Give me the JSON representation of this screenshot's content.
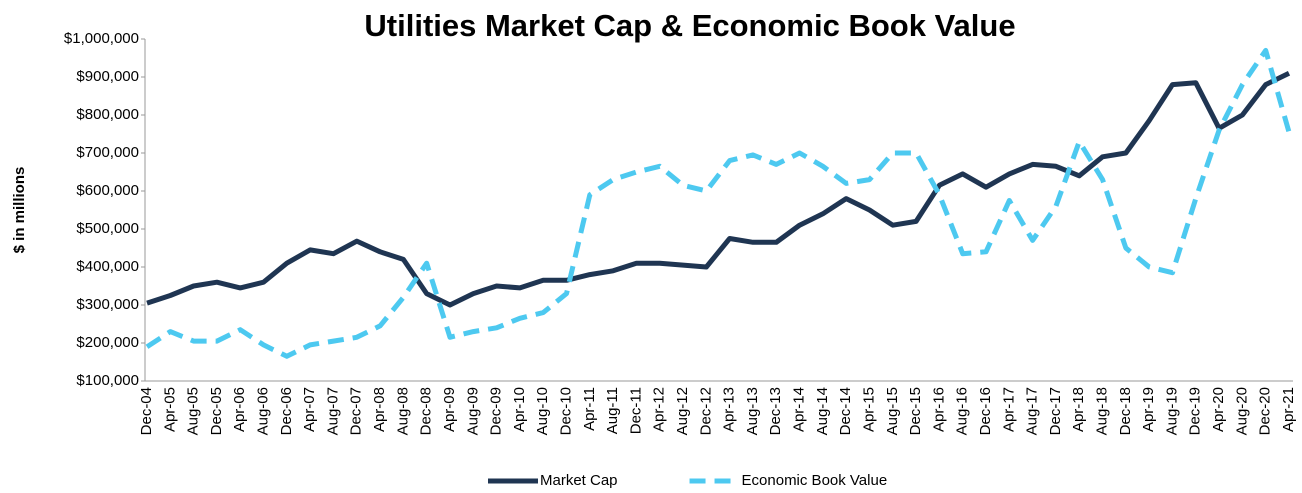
{
  "chart_data": {
    "type": "line",
    "title": "Utilities Market Cap & Economic Book Value",
    "y_label": "$ in millions",
    "categories": [
      "Dec-04",
      "Apr-05",
      "Aug-05",
      "Dec-05",
      "Apr-06",
      "Aug-06",
      "Dec-06",
      "Apr-07",
      "Aug-07",
      "Dec-07",
      "Apr-08",
      "Aug-08",
      "Dec-08",
      "Apr-09",
      "Aug-09",
      "Dec-09",
      "Apr-10",
      "Aug-10",
      "Dec-10",
      "Apr-11",
      "Aug-11",
      "Dec-11",
      "Apr-12",
      "Aug-12",
      "Dec-12",
      "Apr-13",
      "Aug-13",
      "Dec-13",
      "Apr-14",
      "Aug-14",
      "Dec-14",
      "Apr-15",
      "Aug-15",
      "Dec-15",
      "Apr-16",
      "Aug-16",
      "Dec-16",
      "Apr-17",
      "Aug-17",
      "Dec-17",
      "Apr-18",
      "Aug-18",
      "Dec-18",
      "Apr-19",
      "Aug-19",
      "Dec-19",
      "Apr-20",
      "Aug-20",
      "Dec-20",
      "Apr-21"
    ],
    "series": [
      {
        "name": "Market Cap",
        "color": "#1f3552",
        "dash": false,
        "values": [
          305000,
          325000,
          350000,
          360000,
          345000,
          360000,
          410000,
          445000,
          435000,
          468000,
          440000,
          420000,
          330000,
          300000,
          330000,
          350000,
          345000,
          365000,
          365000,
          380000,
          390000,
          410000,
          410000,
          405000,
          400000,
          475000,
          465000,
          465000,
          510000,
          540000,
          580000,
          550000,
          510000,
          520000,
          615000,
          645000,
          610000,
          645000,
          670000,
          665000,
          640000,
          690000,
          700000,
          785000,
          880000,
          885000,
          765000,
          800000,
          880000,
          910000
        ]
      },
      {
        "name": "Economic Book Value",
        "color": "#4dc9f0",
        "dash": true,
        "values": [
          190000,
          230000,
          205000,
          205000,
          235000,
          195000,
          165000,
          195000,
          205000,
          215000,
          245000,
          320000,
          410000,
          215000,
          230000,
          240000,
          265000,
          280000,
          330000,
          590000,
          630000,
          650000,
          665000,
          615000,
          600000,
          680000,
          695000,
          670000,
          700000,
          665000,
          620000,
          630000,
          700000,
          700000,
          590000,
          435000,
          440000,
          575000,
          470000,
          560000,
          730000,
          630000,
          450000,
          400000,
          385000,
          580000,
          760000,
          880000,
          970000,
          755000
        ]
      }
    ],
    "ylim": [
      100000,
      1000000
    ],
    "yticks": [
      {
        "value": 100000,
        "label": "$100,000"
      },
      {
        "value": 200000,
        "label": "$200,000"
      },
      {
        "value": 300000,
        "label": "$300,000"
      },
      {
        "value": 400000,
        "label": "$400,000"
      },
      {
        "value": 500000,
        "label": "$500,000"
      },
      {
        "value": 600000,
        "label": "$600,000"
      },
      {
        "value": 700000,
        "label": "$700,000"
      },
      {
        "value": 800000,
        "label": "$800,000"
      },
      {
        "value": 900000,
        "label": "$900,000"
      },
      {
        "value": 1000000,
        "label": "$1,000,000"
      }
    ],
    "grid": false,
    "legend": "bottom"
  }
}
